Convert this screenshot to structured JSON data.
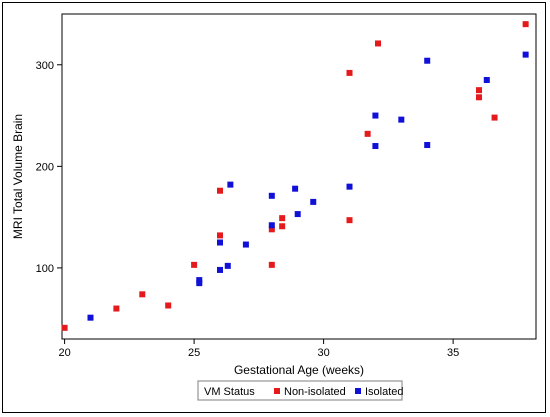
{
  "chart_data": {
    "type": "scatter",
    "xlabel": "Gestational Age (weeks)",
    "ylabel": "MRI Total Volume Brain",
    "xlim": [
      19.9,
      38.2
    ],
    "ylim": [
      30,
      350
    ],
    "xticks": [
      20,
      25,
      30,
      35
    ],
    "yticks": [
      100,
      200,
      300
    ],
    "grid": false,
    "legend": {
      "title": "VM Status",
      "placement": "bottom-center"
    },
    "series": [
      {
        "name": "Non-isolated",
        "color": "#e41a1c",
        "points": [
          {
            "x": 20,
            "y": 41
          },
          {
            "x": 22,
            "y": 60
          },
          {
            "x": 23,
            "y": 74
          },
          {
            "x": 24,
            "y": 63
          },
          {
            "x": 25,
            "y": 103
          },
          {
            "x": 26,
            "y": 176
          },
          {
            "x": 26,
            "y": 132
          },
          {
            "x": 28,
            "y": 138
          },
          {
            "x": 28,
            "y": 103
          },
          {
            "x": 28.4,
            "y": 149
          },
          {
            "x": 28.4,
            "y": 141
          },
          {
            "x": 31,
            "y": 292
          },
          {
            "x": 31,
            "y": 147
          },
          {
            "x": 31.7,
            "y": 232
          },
          {
            "x": 32.1,
            "y": 321
          },
          {
            "x": 36,
            "y": 275
          },
          {
            "x": 36,
            "y": 268
          },
          {
            "x": 36.6,
            "y": 248
          },
          {
            "x": 37.8,
            "y": 340
          }
        ]
      },
      {
        "name": "Isolated",
        "color": "#1010d8",
        "points": [
          {
            "x": 21,
            "y": 51
          },
          {
            "x": 25.2,
            "y": 88
          },
          {
            "x": 25.2,
            "y": 85
          },
          {
            "x": 26,
            "y": 125
          },
          {
            "x": 26,
            "y": 98
          },
          {
            "x": 26.3,
            "y": 102
          },
          {
            "x": 26.4,
            "y": 182
          },
          {
            "x": 27,
            "y": 123
          },
          {
            "x": 28,
            "y": 171
          },
          {
            "x": 28,
            "y": 142
          },
          {
            "x": 28.9,
            "y": 178
          },
          {
            "x": 29,
            "y": 153
          },
          {
            "x": 29.6,
            "y": 165
          },
          {
            "x": 31,
            "y": 180
          },
          {
            "x": 32,
            "y": 250
          },
          {
            "x": 32,
            "y": 220
          },
          {
            "x": 33,
            "y": 246
          },
          {
            "x": 34,
            "y": 304
          },
          {
            "x": 34,
            "y": 221
          },
          {
            "x": 36.3,
            "y": 285
          },
          {
            "x": 37.8,
            "y": 310
          }
        ]
      }
    ]
  }
}
